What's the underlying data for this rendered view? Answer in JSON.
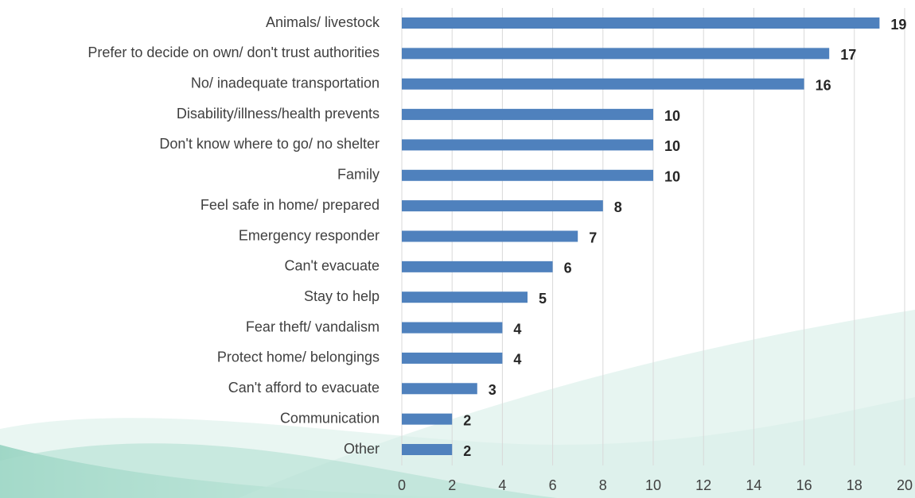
{
  "chart_data": {
    "type": "bar",
    "orientation": "horizontal",
    "categories": [
      "Animals/ livestock",
      "Prefer to decide on own/ don't trust authorities",
      "No/ inadequate transportation",
      "Disability/illness/health prevents",
      "Don't know where to go/ no shelter",
      "Family",
      "Feel safe in home/ prepared",
      "Emergency responder",
      "Can't evacuate",
      "Stay to help",
      "Fear theft/ vandalism",
      "Protect home/ belongings",
      "Can't afford to evacuate",
      "Communication",
      "Other"
    ],
    "values": [
      19,
      17,
      16,
      10,
      10,
      10,
      8,
      7,
      6,
      5,
      4,
      4,
      3,
      2,
      2
    ],
    "color": "#4f81bd",
    "xlim": [
      0,
      20
    ],
    "xticks": [
      0,
      2,
      4,
      6,
      8,
      10,
      12,
      14,
      16,
      18,
      20
    ],
    "grid": true
  }
}
